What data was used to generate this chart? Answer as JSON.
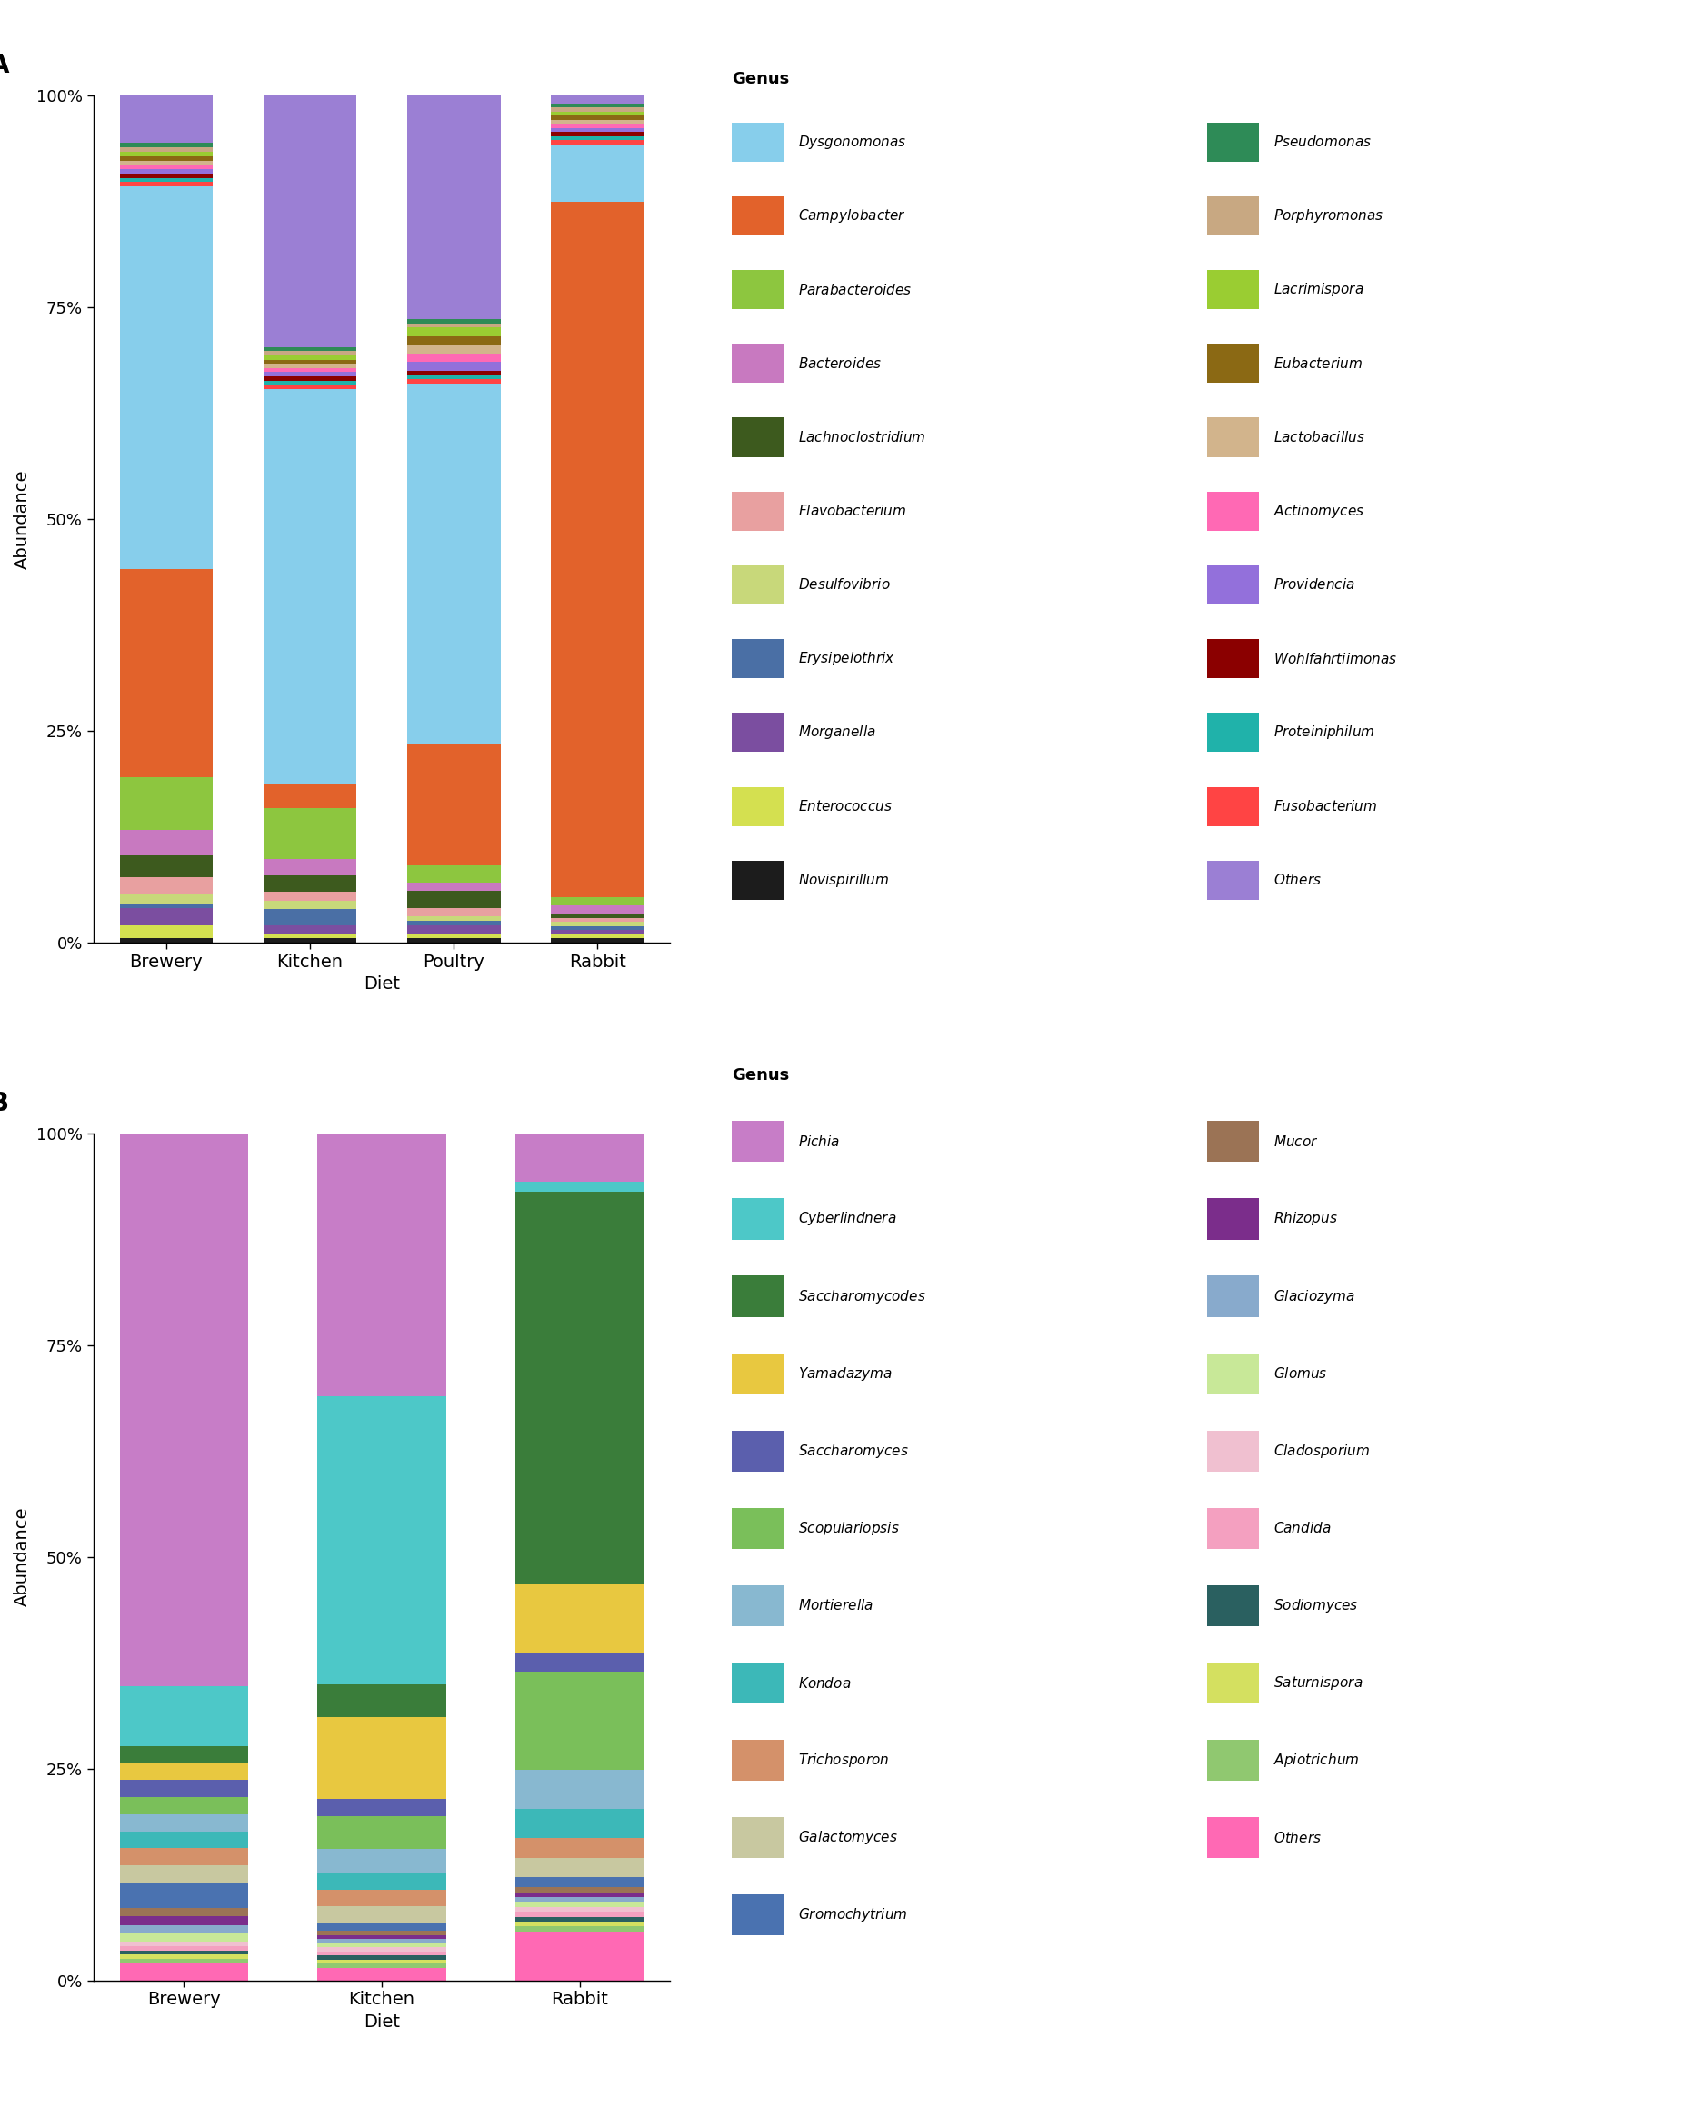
{
  "panel_A": {
    "categories": [
      "Brewery",
      "Kitchen",
      "Poultry",
      "Rabbit"
    ],
    "xlabel": "Diet",
    "ylabel": "Abundance",
    "title": "A",
    "genera": [
      "Novispirillum",
      "Enterococcus",
      "Morganella",
      "Erysipelothrix",
      "Desulfovibrio",
      "Flavobacterium",
      "Lachnoclostridium",
      "Bacteroides",
      "Parabacteroides",
      "Campylobacter",
      "Dysgonomonas",
      "Fusobacterium",
      "Proteiniphilum",
      "Wohlfahrtiimonas",
      "Providencia",
      "Actinomyces",
      "Lactobacillus",
      "Eubacterium",
      "Lacrimispora",
      "Porphyromonas",
      "Pseudomonas",
      "Others"
    ],
    "colors": [
      "#1C1C1C",
      "#D4E050",
      "#7B4EA0",
      "#4A6FA5",
      "#C8D87A",
      "#E8A0A0",
      "#3D5A1E",
      "#C879C0",
      "#8DC63F",
      "#E2622B",
      "#87CEEB",
      "#FF4444",
      "#20B2AA",
      "#8B0000",
      "#9370DB",
      "#FF69B4",
      "#D2B48C",
      "#8B6914",
      "#9ACD32",
      "#C8A882",
      "#2E8B57",
      "#9B7FD4"
    ],
    "values": {
      "Brewery": [
        0.005,
        0.015,
        0.02,
        0.005,
        0.01,
        0.02,
        0.025,
        0.03,
        0.06,
        0.24,
        0.44,
        0.005,
        0.005,
        0.005,
        0.005,
        0.005,
        0.005,
        0.005,
        0.005,
        0.005,
        0.005,
        0.055
      ],
      "Kitchen": [
        0.005,
        0.005,
        0.01,
        0.02,
        0.01,
        0.01,
        0.02,
        0.02,
        0.06,
        0.03,
        0.47,
        0.005,
        0.005,
        0.005,
        0.005,
        0.005,
        0.005,
        0.005,
        0.005,
        0.005,
        0.005,
        0.3
      ],
      "Poultry": [
        0.005,
        0.005,
        0.01,
        0.005,
        0.005,
        0.01,
        0.02,
        0.01,
        0.02,
        0.14,
        0.42,
        0.005,
        0.005,
        0.005,
        0.01,
        0.01,
        0.01,
        0.01,
        0.01,
        0.005,
        0.005,
        0.26
      ],
      "Rabbit": [
        0.005,
        0.005,
        0.005,
        0.005,
        0.005,
        0.005,
        0.005,
        0.01,
        0.01,
        0.85,
        0.07,
        0.005,
        0.005,
        0.005,
        0.005,
        0.005,
        0.005,
        0.005,
        0.005,
        0.005,
        0.005,
        0.01
      ]
    },
    "legend_left": [
      "Dysgonomonas",
      "Campylobacter",
      "Parabacteroides",
      "Bacteroides",
      "Lachnoclostridium",
      "Flavobacterium",
      "Desulfovibrio",
      "Erysipelothrix",
      "Morganella",
      "Enterococcus",
      "Novispirillum"
    ],
    "legend_right": [
      "Pseudomonas",
      "Porphyromonas",
      "Lacrimispora",
      "Eubacterium",
      "Lactobacillus",
      "Actinomyces",
      "Providencia",
      "Wohlfahrtiimonas",
      "Proteiniphilum",
      "Fusobacterium",
      "Others"
    ],
    "legend_colors_left": [
      "#87CEEB",
      "#E2622B",
      "#8DC63F",
      "#C879C0",
      "#3D5A1E",
      "#E8A0A0",
      "#C8D87A",
      "#4A6FA5",
      "#7B4EA0",
      "#D4E050",
      "#1C1C1C"
    ],
    "legend_colors_right": [
      "#2E8B57",
      "#C8A882",
      "#9ACD32",
      "#8B6914",
      "#D2B48C",
      "#FF69B4",
      "#9370DB",
      "#8B0000",
      "#20B2AA",
      "#FF4444",
      "#9B7FD4"
    ]
  },
  "panel_B": {
    "categories": [
      "Brewery",
      "Kitchen",
      "Rabbit"
    ],
    "xlabel": "Diet",
    "ylabel": "Abundance",
    "title": "B",
    "genera": [
      "Others",
      "Apiotrichum",
      "Saturnispora",
      "Sodiomyces",
      "Candida",
      "Cladosporium",
      "Glomus",
      "Glaciozyma",
      "Rhizopus",
      "Mucor",
      "Gromochytrium",
      "Galactomyces",
      "Trichosporon",
      "Kondoa",
      "Mortierella",
      "Scopulariopsis",
      "Saccharomyces",
      "Yamadazyma",
      "Saccharomycodes",
      "Cyberlindnera",
      "Pichia"
    ],
    "colors": [
      "#FF69B4",
      "#90C870",
      "#D4E060",
      "#2A6060",
      "#F4A0C0",
      "#F0C0D0",
      "#C8E898",
      "#88AACC",
      "#7B2D8B",
      "#9B7355",
      "#4A72B0",
      "#C8C8A0",
      "#D4916A",
      "#3CB8B8",
      "#88B8D0",
      "#7ABF5A",
      "#5B5FAD",
      "#E8C840",
      "#3A7D3A",
      "#4DC8C8",
      "#C77DC7"
    ],
    "values": {
      "Brewery": [
        0.02,
        0.005,
        0.005,
        0.005,
        0.005,
        0.005,
        0.01,
        0.01,
        0.01,
        0.01,
        0.03,
        0.02,
        0.02,
        0.02,
        0.02,
        0.02,
        0.02,
        0.02,
        0.02,
        0.07,
        0.65
      ],
      "Kitchen": [
        0.015,
        0.005,
        0.005,
        0.005,
        0.005,
        0.005,
        0.005,
        0.005,
        0.005,
        0.005,
        0.01,
        0.02,
        0.02,
        0.02,
        0.03,
        0.04,
        0.02,
        0.1,
        0.04,
        0.35,
        0.32
      ],
      "Rabbit": [
        0.05,
        0.005,
        0.005,
        0.005,
        0.005,
        0.005,
        0.005,
        0.005,
        0.005,
        0.005,
        0.01,
        0.02,
        0.02,
        0.03,
        0.04,
        0.1,
        0.02,
        0.07,
        0.4,
        0.01,
        0.05
      ]
    },
    "legend_left": [
      "Pichia",
      "Cyberlindnera",
      "Saccharomycodes",
      "Yamadazyma",
      "Saccharomyces",
      "Scopulariopsis",
      "Mortierella",
      "Kondoa",
      "Trichosporon",
      "Galactomyces",
      "Gromochytrium"
    ],
    "legend_right": [
      "Mucor",
      "Rhizopus",
      "Glaciozyma",
      "Glomus",
      "Cladosporium",
      "Candida",
      "Sodiomyces",
      "Saturnispora",
      "Apiotrichum",
      "Others"
    ],
    "legend_colors_left": [
      "#C77DC7",
      "#4DC8C8",
      "#3A7D3A",
      "#E8C840",
      "#5B5FAD",
      "#7ABF5A",
      "#88B8D0",
      "#3CB8B8",
      "#D4916A",
      "#C8C8A0",
      "#4A72B0"
    ],
    "legend_colors_right": [
      "#9B7355",
      "#7B2D8B",
      "#88AACC",
      "#C8E898",
      "#F0C0D0",
      "#F4A0C0",
      "#2A6060",
      "#D4E060",
      "#90C870",
      "#FF69B4"
    ]
  }
}
